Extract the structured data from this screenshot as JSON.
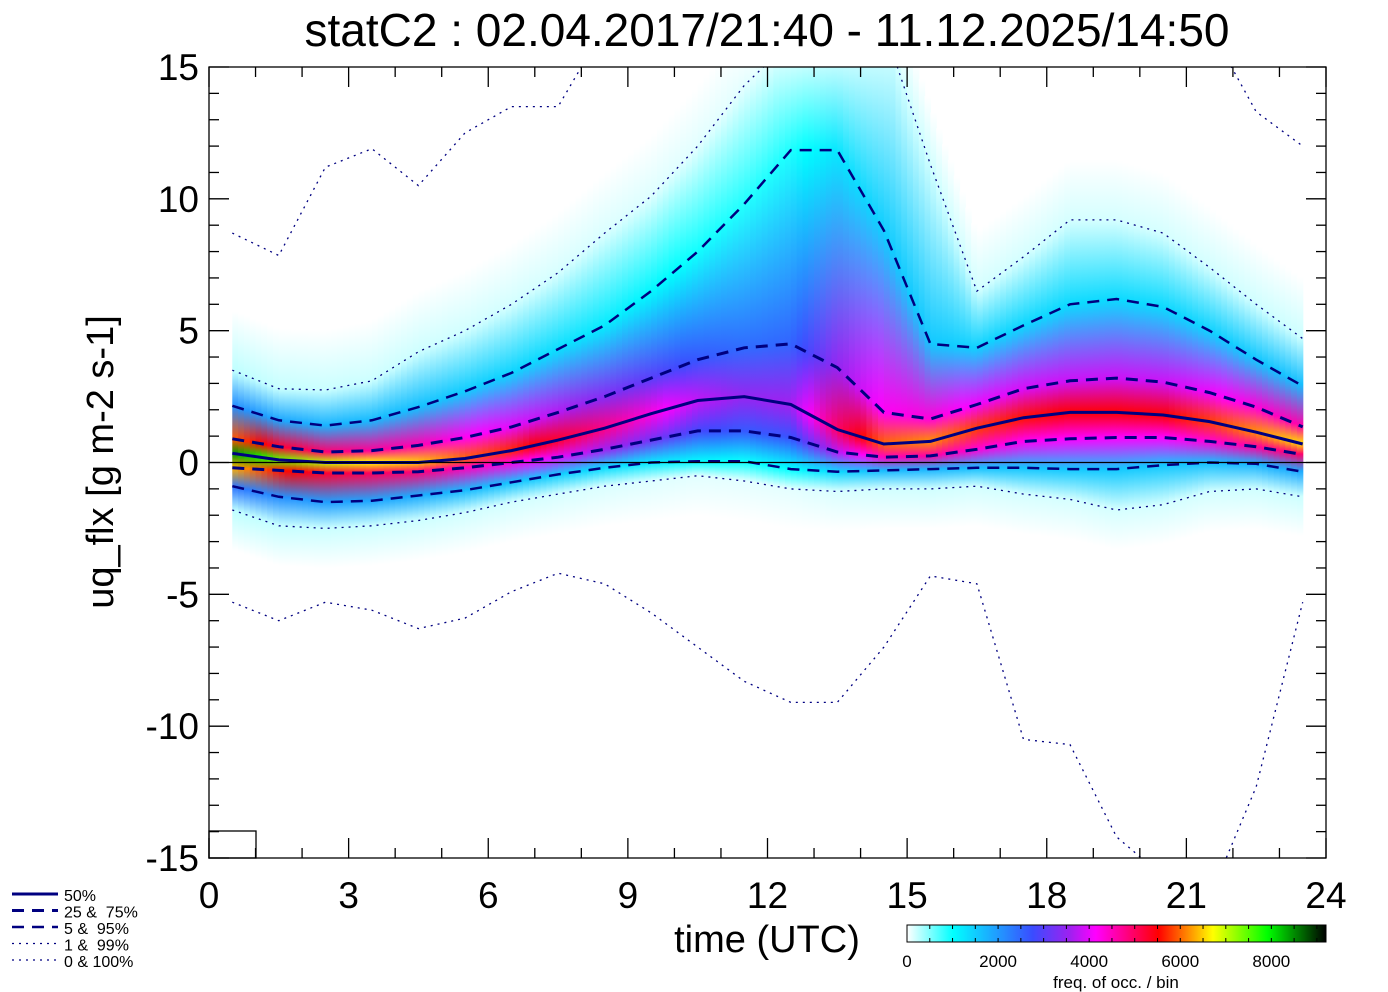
{
  "chart_data": {
    "type": "heatmap",
    "title": "statC2 : 02.04.2017/21:40 - 11.12.2025/14:50",
    "xlabel": "time (UTC)",
    "ylabel": "uq_flx [g m-2 s-1]",
    "xlim": [
      0,
      24
    ],
    "ylim": [
      -15,
      15
    ],
    "xticks": [
      "0",
      "3",
      "6",
      "9",
      "12",
      "15",
      "18",
      "21",
      "24"
    ],
    "yticks": [
      "-15",
      "-10",
      "-5",
      "0",
      "5",
      "10",
      "15"
    ],
    "x": [
      0.5,
      1.5,
      2.5,
      3.5,
      4.5,
      5.5,
      6.5,
      7.5,
      8.5,
      9.5,
      10.5,
      11.5,
      12.5,
      13.5,
      14.5,
      15.5,
      16.5,
      17.5,
      18.5,
      19.5,
      20.5,
      21.5,
      22.5,
      23.5
    ],
    "series": [
      {
        "name": "0%",
        "values": [
          -5.3,
          -6.0,
          -5.3,
          -5.6,
          -6.3,
          -5.9,
          -4.9,
          -4.2,
          -4.6,
          -5.7,
          -7.0,
          -8.3,
          -9.1,
          -9.1,
          -7.0,
          -4.3,
          -4.6,
          -10.5,
          -10.7,
          -14.2,
          -15.7,
          -16.5,
          -12.3,
          -5.3
        ]
      },
      {
        "name": "1%",
        "values": [
          -1.8,
          -2.4,
          -2.5,
          -2.4,
          -2.2,
          -1.9,
          -1.5,
          -1.2,
          -0.9,
          -0.7,
          -0.5,
          -0.7,
          -1.0,
          -1.1,
          -1.0,
          -1.0,
          -0.9,
          -1.2,
          -1.4,
          -1.8,
          -1.6,
          -1.1,
          -1.0,
          -1.3
        ]
      },
      {
        "name": "5%",
        "values": [
          -0.9,
          -1.3,
          -1.5,
          -1.45,
          -1.25,
          -1.05,
          -0.75,
          -0.45,
          -0.2,
          0.0,
          0.05,
          0.05,
          -0.25,
          -0.35,
          -0.3,
          -0.25,
          -0.2,
          -0.2,
          -0.25,
          -0.25,
          -0.1,
          0.0,
          -0.05,
          -0.35
        ]
      },
      {
        "name": "25%",
        "values": [
          -0.2,
          -0.3,
          -0.4,
          -0.4,
          -0.35,
          -0.2,
          0.0,
          0.2,
          0.5,
          0.85,
          1.2,
          1.2,
          0.95,
          0.4,
          0.2,
          0.25,
          0.5,
          0.8,
          0.9,
          0.95,
          0.95,
          0.8,
          0.6,
          0.3
        ]
      },
      {
        "name": "50%",
        "values": [
          0.35,
          0.1,
          0.0,
          0.0,
          0.0,
          0.15,
          0.45,
          0.85,
          1.3,
          1.85,
          2.35,
          2.5,
          2.2,
          1.25,
          0.7,
          0.8,
          1.3,
          1.7,
          1.9,
          1.9,
          1.8,
          1.55,
          1.15,
          0.7
        ]
      },
      {
        "name": "75%",
        "values": [
          0.9,
          0.6,
          0.4,
          0.45,
          0.65,
          0.95,
          1.35,
          1.9,
          2.5,
          3.2,
          3.9,
          4.35,
          4.5,
          3.6,
          1.9,
          1.65,
          2.2,
          2.8,
          3.1,
          3.2,
          3.05,
          2.65,
          2.1,
          1.35
        ]
      },
      {
        "name": "95%",
        "values": [
          2.15,
          1.6,
          1.4,
          1.6,
          2.1,
          2.7,
          3.4,
          4.3,
          5.2,
          6.5,
          8.0,
          9.8,
          11.85,
          11.85,
          8.8,
          4.5,
          4.35,
          5.2,
          6.0,
          6.2,
          5.9,
          5.0,
          3.9,
          2.9
        ]
      },
      {
        "name": "99%",
        "values": [
          3.5,
          2.8,
          2.75,
          3.1,
          4.2,
          5.0,
          6.0,
          7.2,
          8.7,
          10.1,
          12.0,
          14.3,
          16.0,
          16.5,
          16.5,
          11.3,
          6.5,
          7.8,
          9.2,
          9.2,
          8.7,
          7.4,
          6.0,
          4.7
        ]
      },
      {
        "name": "100%",
        "values": [
          8.7,
          7.85,
          11.2,
          11.9,
          10.5,
          12.5,
          13.5,
          13.5,
          16.5,
          17,
          17,
          17,
          17,
          17,
          17,
          17,
          17,
          17,
          17,
          17,
          17,
          16.5,
          13.3,
          12.0
        ]
      }
    ],
    "peak_freq": [
      8500,
      7500,
      7000,
      6700,
      6500,
      6000,
      5700,
      5300,
      4800,
      4300,
      3800,
      3500,
      3600,
      5000,
      6000,
      6200,
      5800,
      5600,
      5500,
      5500,
      5500,
      5800,
      6200,
      6600
    ],
    "legend": {
      "placement": "bottom-left",
      "entries": [
        "50%",
        "25 &  75%",
        "5 &  95%",
        "1 &  99%",
        "0 & 100%"
      ]
    },
    "colorbar": {
      "label": "freq. of occ. / bin",
      "range": [
        0,
        9200
      ],
      "ticks": [
        "0",
        "2000",
        "4000",
        "6000",
        "8000"
      ],
      "colors": [
        "#ffffff",
        "#00ffff",
        "#3a4cff",
        "#a020f0",
        "#ff00ff",
        "#ff0000",
        "#ffff00",
        "#00ff00",
        "#000000"
      ]
    },
    "line_color": "#000080"
  }
}
